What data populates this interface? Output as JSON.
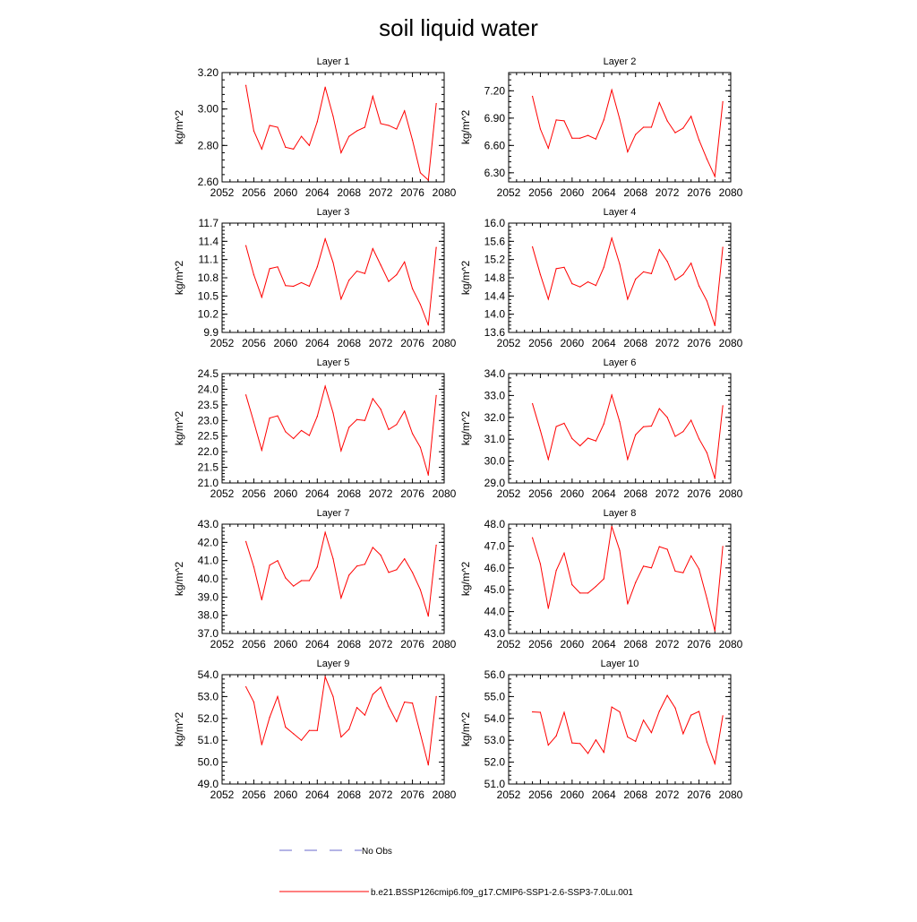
{
  "title": "soil liquid water",
  "colors": {
    "series": "#ff0000",
    "obs": "#6a6acd",
    "axis": "#000000"
  },
  "legend": {
    "obs_label": "No Obs",
    "series_label": "b.e21.BSSP126cmip6.f09_g17.CMIP6-SSP1-2.6-SSP3-7.0Lu.001"
  },
  "chart_data": [
    {
      "type": "line",
      "title": "Layer 1",
      "ylabel": "kg/m^2",
      "xlim": [
        2052,
        2080
      ],
      "xticks": [
        "2052",
        "2056",
        "2060",
        "2064",
        "2068",
        "2072",
        "2076",
        "2080"
      ],
      "ylim": [
        2.6,
        3.2
      ],
      "yticks": [
        "2.60",
        "2.80",
        "3.00",
        "3.20"
      ],
      "x": [
        2055,
        2056,
        2057,
        2058,
        2059,
        2060,
        2061,
        2062,
        2063,
        2064,
        2065,
        2066,
        2067,
        2068,
        2069,
        2070,
        2071,
        2072,
        2073,
        2074,
        2075,
        2076,
        2077,
        2078,
        2079
      ],
      "series": [
        {
          "values": [
            3.13,
            2.88,
            2.78,
            2.91,
            2.9,
            2.79,
            2.78,
            2.85,
            2.8,
            2.93,
            3.12,
            2.96,
            2.76,
            2.85,
            2.88,
            2.9,
            3.07,
            2.92,
            2.91,
            2.89,
            2.99,
            2.83,
            2.65,
            2.61,
            3.03
          ]
        }
      ]
    },
    {
      "type": "line",
      "title": "Layer 2",
      "ylabel": "kg/m^2",
      "xlim": [
        2052,
        2080
      ],
      "xticks": [
        "2052",
        "2056",
        "2060",
        "2064",
        "2068",
        "2072",
        "2076",
        "2080"
      ],
      "ylim": [
        6.2,
        7.4
      ],
      "yticks": [
        "6.30",
        "6.60",
        "6.90",
        "7.20"
      ],
      "x": [
        2055,
        2056,
        2057,
        2058,
        2059,
        2060,
        2061,
        2062,
        2063,
        2064,
        2065,
        2066,
        2067,
        2068,
        2069,
        2070,
        2071,
        2072,
        2073,
        2074,
        2075,
        2076,
        2077,
        2078,
        2079
      ],
      "series": [
        {
          "values": [
            7.14,
            6.78,
            6.57,
            6.88,
            6.87,
            6.68,
            6.68,
            6.71,
            6.67,
            6.88,
            7.21,
            6.89,
            6.53,
            6.72,
            6.8,
            6.8,
            7.07,
            6.87,
            6.74,
            6.79,
            6.92,
            6.66,
            6.45,
            6.26,
            7.08
          ]
        }
      ]
    },
    {
      "type": "line",
      "title": "Layer 3",
      "ylabel": "kg/m^2",
      "xlim": [
        2052,
        2080
      ],
      "xticks": [
        "2052",
        "2056",
        "2060",
        "2064",
        "2068",
        "2072",
        "2076",
        "2080"
      ],
      "ylim": [
        9.9,
        11.7
      ],
      "yticks": [
        "9.9",
        "10.2",
        "10.5",
        "10.8",
        "11.1",
        "11.4",
        "11.7"
      ],
      "x": [
        2055,
        2056,
        2057,
        2058,
        2059,
        2060,
        2061,
        2062,
        2063,
        2064,
        2065,
        2066,
        2067,
        2068,
        2069,
        2070,
        2071,
        2072,
        2073,
        2074,
        2075,
        2076,
        2077,
        2078,
        2079
      ],
      "series": [
        {
          "values": [
            11.33,
            10.85,
            10.48,
            10.95,
            10.98,
            10.67,
            10.66,
            10.72,
            10.66,
            10.98,
            11.44,
            11.05,
            10.45,
            10.76,
            10.91,
            10.87,
            11.28,
            11.01,
            10.74,
            10.85,
            11.06,
            10.62,
            10.36,
            10.02,
            11.3
          ]
        }
      ]
    },
    {
      "type": "line",
      "title": "Layer 4",
      "ylabel": "kg/m^2",
      "xlim": [
        2052,
        2080
      ],
      "xticks": [
        "2052",
        "2056",
        "2060",
        "2064",
        "2068",
        "2072",
        "2076",
        "2080"
      ],
      "ylim": [
        13.6,
        16.0
      ],
      "yticks": [
        "13.6",
        "14.0",
        "14.4",
        "14.8",
        "15.2",
        "15.6",
        "16.0"
      ],
      "x": [
        2055,
        2056,
        2057,
        2058,
        2059,
        2060,
        2061,
        2062,
        2063,
        2064,
        2065,
        2066,
        2067,
        2068,
        2069,
        2070,
        2071,
        2072,
        2073,
        2074,
        2075,
        2076,
        2077,
        2078,
        2079
      ],
      "series": [
        {
          "values": [
            15.48,
            14.87,
            14.33,
            15.0,
            15.03,
            14.67,
            14.6,
            14.71,
            14.63,
            15.03,
            15.67,
            15.1,
            14.33,
            14.77,
            14.93,
            14.89,
            15.42,
            15.16,
            14.75,
            14.87,
            15.12,
            14.62,
            14.29,
            13.75,
            15.47
          ]
        }
      ]
    },
    {
      "type": "line",
      "title": "Layer 5",
      "ylabel": "kg/m^2",
      "xlim": [
        2052,
        2080
      ],
      "xticks": [
        "2052",
        "2056",
        "2060",
        "2064",
        "2068",
        "2072",
        "2076",
        "2080"
      ],
      "ylim": [
        21.0,
        24.5
      ],
      "yticks": [
        "21.0",
        "21.5",
        "22.0",
        "22.5",
        "23.0",
        "23.5",
        "24.0",
        "24.5"
      ],
      "x": [
        2055,
        2056,
        2057,
        2058,
        2059,
        2060,
        2061,
        2062,
        2063,
        2064,
        2065,
        2066,
        2067,
        2068,
        2069,
        2070,
        2071,
        2072,
        2073,
        2074,
        2075,
        2076,
        2077,
        2078,
        2079
      ],
      "series": [
        {
          "values": [
            23.82,
            22.95,
            22.05,
            23.08,
            23.15,
            22.64,
            22.42,
            22.68,
            22.52,
            23.13,
            24.1,
            23.24,
            22.03,
            22.78,
            23.03,
            23.0,
            23.7,
            23.36,
            22.71,
            22.87,
            23.3,
            22.58,
            22.14,
            21.25,
            23.8
          ]
        }
      ]
    },
    {
      "type": "line",
      "title": "Layer 6",
      "ylabel": "kg/m^2",
      "xlim": [
        2052,
        2080
      ],
      "xticks": [
        "2052",
        "2056",
        "2060",
        "2064",
        "2068",
        "2072",
        "2076",
        "2080"
      ],
      "ylim": [
        29.0,
        34.0
      ],
      "yticks": [
        "29.0",
        "30.0",
        "31.0",
        "32.0",
        "33.0",
        "34.0"
      ],
      "x": [
        2055,
        2056,
        2057,
        2058,
        2059,
        2060,
        2061,
        2062,
        2063,
        2064,
        2065,
        2066,
        2067,
        2068,
        2069,
        2070,
        2071,
        2072,
        2073,
        2074,
        2075,
        2076,
        2077,
        2078,
        2079
      ],
      "series": [
        {
          "values": [
            32.63,
            31.4,
            30.08,
            31.58,
            31.73,
            31.03,
            30.7,
            31.05,
            30.92,
            31.7,
            33.02,
            31.8,
            30.08,
            31.2,
            31.57,
            31.6,
            32.4,
            32.0,
            31.13,
            31.35,
            31.87,
            31.02,
            30.38,
            29.2,
            32.53
          ]
        }
      ]
    },
    {
      "type": "line",
      "title": "Layer 7",
      "ylabel": "kg/m^2",
      "xlim": [
        2052,
        2080
      ],
      "xticks": [
        "2052",
        "2056",
        "2060",
        "2064",
        "2068",
        "2072",
        "2076",
        "2080"
      ],
      "ylim": [
        37.0,
        43.0
      ],
      "yticks": [
        "37.0",
        "38.0",
        "39.0",
        "40.0",
        "41.0",
        "42.0",
        "43.0"
      ],
      "x": [
        2055,
        2056,
        2057,
        2058,
        2059,
        2060,
        2061,
        2062,
        2063,
        2064,
        2065,
        2066,
        2067,
        2068,
        2069,
        2070,
        2071,
        2072,
        2073,
        2074,
        2075,
        2076,
        2077,
        2078,
        2079
      ],
      "series": [
        {
          "values": [
            42.05,
            40.65,
            38.85,
            40.75,
            41.0,
            40.05,
            39.6,
            39.9,
            39.9,
            40.65,
            42.55,
            41.1,
            38.95,
            40.2,
            40.7,
            40.8,
            41.72,
            41.3,
            40.35,
            40.5,
            41.1,
            40.35,
            39.4,
            37.95,
            41.85
          ]
        }
      ]
    },
    {
      "type": "line",
      "title": "Layer 8",
      "ylabel": "kg/m^2",
      "xlim": [
        2052,
        2080
      ],
      "xticks": [
        "2052",
        "2056",
        "2060",
        "2064",
        "2068",
        "2072",
        "2076",
        "2080"
      ],
      "ylim": [
        43.0,
        48.0
      ],
      "yticks": [
        "43.0",
        "44.0",
        "45.0",
        "46.0",
        "47.0",
        "48.0"
      ],
      "x": [
        2055,
        2056,
        2057,
        2058,
        2059,
        2060,
        2061,
        2062,
        2063,
        2064,
        2065,
        2066,
        2067,
        2068,
        2069,
        2070,
        2071,
        2072,
        2073,
        2074,
        2075,
        2076,
        2077,
        2078,
        2079
      ],
      "series": [
        {
          "values": [
            47.38,
            46.18,
            44.15,
            45.88,
            46.68,
            45.23,
            44.85,
            44.85,
            45.15,
            45.5,
            47.9,
            46.8,
            44.35,
            45.33,
            46.08,
            46.0,
            46.97,
            46.85,
            45.85,
            45.78,
            46.55,
            45.95,
            44.6,
            43.12,
            46.98
          ]
        }
      ]
    },
    {
      "type": "line",
      "title": "Layer 9",
      "ylabel": "kg/m^2",
      "xlim": [
        2052,
        2080
      ],
      "xticks": [
        "2052",
        "2056",
        "2060",
        "2064",
        "2068",
        "2072",
        "2076",
        "2080"
      ],
      "ylim": [
        49.0,
        54.0
      ],
      "yticks": [
        "49.0",
        "50.0",
        "51.0",
        "52.0",
        "53.0",
        "54.0"
      ],
      "x": [
        2055,
        2056,
        2057,
        2058,
        2059,
        2060,
        2061,
        2062,
        2063,
        2064,
        2065,
        2066,
        2067,
        2068,
        2069,
        2070,
        2071,
        2072,
        2073,
        2074,
        2075,
        2076,
        2077,
        2078,
        2079
      ],
      "series": [
        {
          "values": [
            53.45,
            52.75,
            50.8,
            52.05,
            53.0,
            51.6,
            51.3,
            51.0,
            51.45,
            51.45,
            53.9,
            53.0,
            51.15,
            51.5,
            52.5,
            52.15,
            53.1,
            53.43,
            52.55,
            51.85,
            52.75,
            52.7,
            51.3,
            49.87,
            53.0
          ]
        }
      ]
    },
    {
      "type": "line",
      "title": "Layer 10",
      "ylabel": "kg/m^2",
      "xlim": [
        2052,
        2080
      ],
      "xticks": [
        "2052",
        "2056",
        "2060",
        "2064",
        "2068",
        "2072",
        "2076",
        "2080"
      ],
      "ylim": [
        51.0,
        56.0
      ],
      "yticks": [
        "51.0",
        "52.0",
        "53.0",
        "54.0",
        "55.0",
        "56.0"
      ],
      "x": [
        2055,
        2056,
        2057,
        2058,
        2059,
        2060,
        2061,
        2062,
        2063,
        2064,
        2065,
        2066,
        2067,
        2068,
        2069,
        2070,
        2071,
        2072,
        2073,
        2074,
        2075,
        2076,
        2077,
        2078,
        2079
      ],
      "series": [
        {
          "values": [
            54.3,
            54.28,
            52.78,
            53.2,
            54.28,
            52.88,
            52.85,
            52.4,
            53.02,
            52.45,
            54.52,
            54.3,
            53.15,
            52.95,
            53.92,
            53.35,
            54.33,
            55.05,
            54.48,
            53.3,
            54.15,
            54.32,
            52.92,
            51.93,
            54.12
          ]
        }
      ]
    }
  ]
}
